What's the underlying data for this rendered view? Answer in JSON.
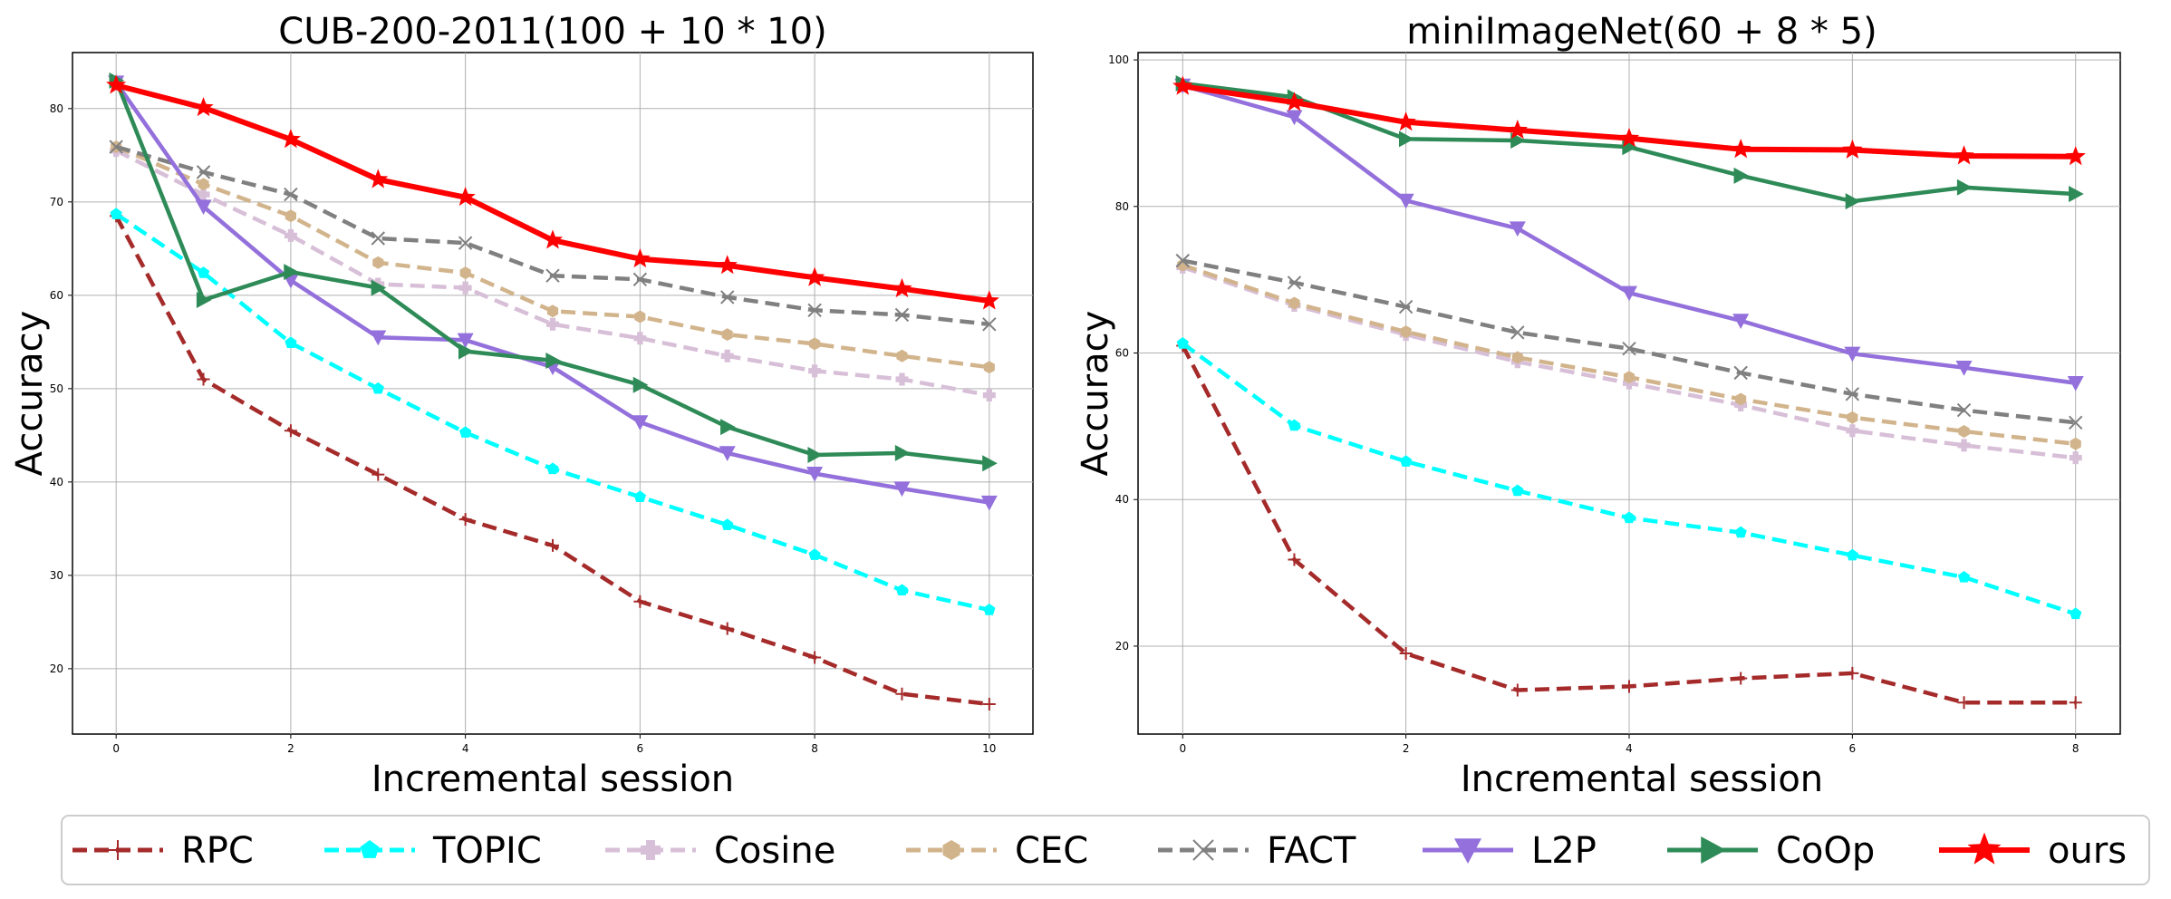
{
  "chart_data": [
    {
      "type": "line",
      "title": "CUB-200-2011(100 + 10 * 10)",
      "xlabel": "Incremental session",
      "ylabel": "Accuracy",
      "xlim": [
        -0.5,
        10.5
      ],
      "ylim": [
        13,
        86
      ],
      "xticks": [
        0,
        2,
        4,
        6,
        8,
        10
      ],
      "yticks": [
        20,
        30,
        40,
        50,
        60,
        70,
        80
      ],
      "grid": true,
      "x": [
        0,
        1,
        2,
        3,
        4,
        5,
        6,
        7,
        8,
        9,
        10
      ],
      "series": [
        {
          "name": "RPC",
          "values": [
            68.5,
            51.0,
            45.5,
            40.8,
            36.0,
            33.2,
            27.2,
            24.3,
            21.2,
            17.3,
            16.2
          ]
        },
        {
          "name": "TOPIC",
          "values": [
            68.7,
            62.4,
            54.9,
            50.0,
            45.3,
            41.4,
            38.4,
            35.4,
            32.2,
            28.4,
            26.3
          ]
        },
        {
          "name": "Cosine",
          "values": [
            75.5,
            70.8,
            66.4,
            61.2,
            60.8,
            56.9,
            55.4,
            53.5,
            51.9,
            51.0,
            49.3
          ]
        },
        {
          "name": "CEC",
          "values": [
            75.9,
            71.9,
            68.5,
            63.5,
            62.4,
            58.3,
            57.7,
            55.8,
            54.8,
            53.5,
            52.3
          ]
        },
        {
          "name": "FACT",
          "values": [
            75.9,
            73.2,
            70.8,
            66.1,
            65.6,
            62.1,
            61.7,
            59.8,
            58.4,
            57.9,
            56.9
          ]
        },
        {
          "name": "L2P",
          "values": [
            82.8,
            69.5,
            61.6,
            55.5,
            55.2,
            52.3,
            46.4,
            43.1,
            40.9,
            39.3,
            37.8
          ]
        },
        {
          "name": "CoOp",
          "values": [
            83.0,
            59.5,
            62.5,
            60.8,
            54.0,
            53.0,
            50.4,
            45.9,
            42.9,
            43.1,
            42.0
          ]
        },
        {
          "name": "ours",
          "values": [
            82.5,
            80.1,
            76.7,
            72.4,
            70.5,
            65.9,
            63.9,
            63.2,
            61.9,
            60.7,
            59.4
          ]
        }
      ]
    },
    {
      "type": "line",
      "title": "miniImageNet(60 + 8 * 5)",
      "xlabel": "Incremental session",
      "ylabel": "Accuracy",
      "xlim": [
        -0.4,
        8.4
      ],
      "ylim": [
        8,
        101
      ],
      "xticks": [
        0,
        2,
        4,
        6,
        8
      ],
      "yticks": [
        20,
        40,
        60,
        80,
        100
      ],
      "grid": true,
      "x": [
        0,
        1,
        2,
        3,
        4,
        5,
        6,
        7,
        8
      ],
      "series": [
        {
          "name": "RPC",
          "values": [
            61.0,
            31.8,
            19.0,
            14.0,
            14.5,
            15.6,
            16.3,
            12.3,
            12.3
          ]
        },
        {
          "name": "TOPIC",
          "values": [
            61.3,
            50.1,
            45.2,
            41.2,
            37.5,
            35.5,
            32.4,
            29.4,
            24.4
          ]
        },
        {
          "name": "Cosine",
          "values": [
            71.7,
            66.5,
            62.5,
            58.8,
            55.9,
            52.9,
            49.4,
            47.4,
            45.7
          ]
        },
        {
          "name": "CEC",
          "values": [
            72.0,
            66.8,
            62.9,
            59.4,
            56.7,
            53.7,
            51.2,
            49.3,
            47.6
          ]
        },
        {
          "name": "FACT",
          "values": [
            72.6,
            69.6,
            66.3,
            62.8,
            60.6,
            57.3,
            54.4,
            52.2,
            50.5
          ]
        },
        {
          "name": "L2P",
          "values": [
            96.5,
            92.2,
            80.8,
            77.0,
            68.2,
            64.4,
            59.9,
            58.0,
            55.9
          ]
        },
        {
          "name": "CoOp",
          "values": [
            96.8,
            94.9,
            89.2,
            89.0,
            88.1,
            84.2,
            80.7,
            82.6,
            81.7
          ]
        },
        {
          "name": "ours",
          "values": [
            96.4,
            94.2,
            91.5,
            90.4,
            89.3,
            87.8,
            87.7,
            86.9,
            86.8
          ]
        }
      ]
    }
  ],
  "legend": {
    "position": "bottom",
    "items": [
      "RPC",
      "TOPIC",
      "Cosine",
      "CEC",
      "FACT",
      "L2P",
      "CoOp",
      "ours"
    ]
  },
  "styles": {
    "RPC": {
      "color": "#a52a2a",
      "dash": "dashed",
      "marker": "plus"
    },
    "TOPIC": {
      "color": "#00ffff",
      "dash": "dashed",
      "marker": "pentagon"
    },
    "Cosine": {
      "color": "#d8bfd8",
      "dash": "dashed",
      "marker": "plus-filled"
    },
    "CEC": {
      "color": "#d2b48c",
      "dash": "dashed",
      "marker": "hexagon"
    },
    "FACT": {
      "color": "#808080",
      "dash": "dashed",
      "marker": "x"
    },
    "L2P": {
      "color": "#9370db",
      "dash": "solid",
      "marker": "triangle-down"
    },
    "CoOp": {
      "color": "#2e8b57",
      "dash": "solid",
      "marker": "triangle-right"
    },
    "ours": {
      "color": "#ff0000",
      "dash": "solid",
      "marker": "star"
    }
  }
}
